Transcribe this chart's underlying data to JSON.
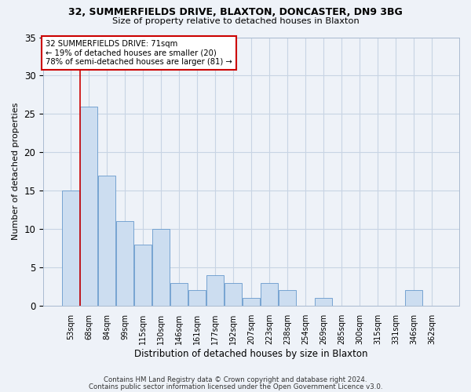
{
  "title1": "32, SUMMERFIELDS DRIVE, BLAXTON, DONCASTER, DN9 3BG",
  "title2": "Size of property relative to detached houses in Blaxton",
  "xlabel": "Distribution of detached houses by size in Blaxton",
  "ylabel": "Number of detached properties",
  "categories": [
    "53sqm",
    "68sqm",
    "84sqm",
    "99sqm",
    "115sqm",
    "130sqm",
    "146sqm",
    "161sqm",
    "177sqm",
    "192sqm",
    "207sqm",
    "223sqm",
    "238sqm",
    "254sqm",
    "269sqm",
    "285sqm",
    "300sqm",
    "315sqm",
    "331sqm",
    "346sqm",
    "362sqm"
  ],
  "values": [
    15,
    26,
    17,
    11,
    8,
    10,
    3,
    2,
    4,
    3,
    1,
    3,
    2,
    0,
    1,
    0,
    0,
    0,
    0,
    2,
    0
  ],
  "bar_color": "#ccddf0",
  "bar_edge_color": "#6699cc",
  "vline_x": 0.5,
  "annotation_text": "32 SUMMERFIELDS DRIVE: 71sqm\n← 19% of detached houses are smaller (20)\n78% of semi-detached houses are larger (81) →",
  "annotation_box_color": "#ffffff",
  "annotation_box_edge": "#cc0000",
  "vline_color": "#cc0000",
  "ylim": [
    0,
    35
  ],
  "yticks": [
    0,
    5,
    10,
    15,
    20,
    25,
    30,
    35
  ],
  "footer1": "Contains HM Land Registry data © Crown copyright and database right 2024.",
  "footer2": "Contains public sector information licensed under the Open Government Licence v3.0.",
  "bg_color": "#eef2f8",
  "grid_color": "#c8d4e4"
}
